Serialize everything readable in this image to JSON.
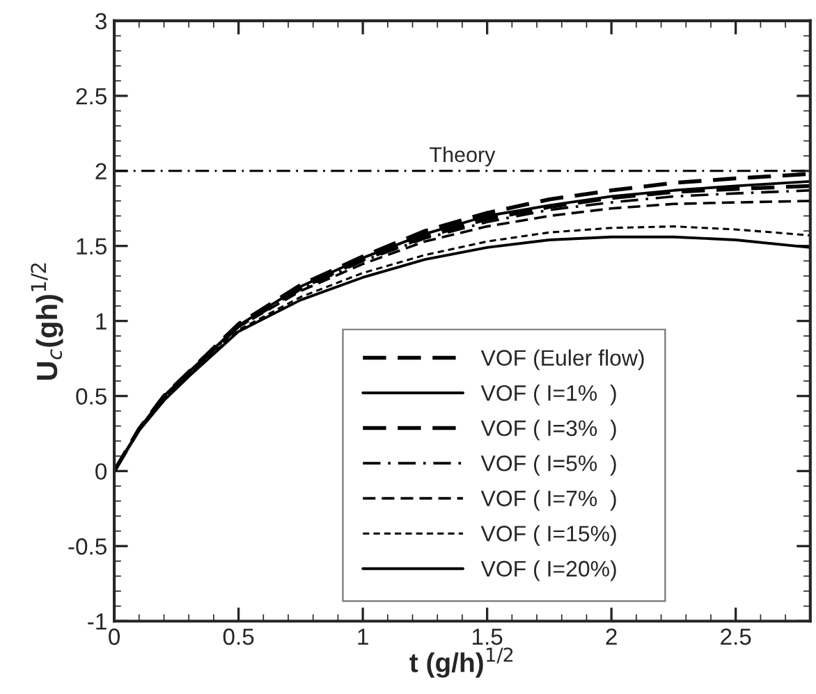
{
  "chart_data": {
    "type": "line",
    "xlabel": "t (g/h)$^{1/2}$",
    "ylabel": "U$_{c}$(gh)$^{1/2}$",
    "x": [
      0,
      0.1,
      0.2,
      0.3,
      0.5,
      0.75,
      1,
      1.25,
      1.5,
      1.75,
      2,
      2.25,
      2.5,
      2.8
    ],
    "series": [
      {
        "name": "VOF (Euler flow)",
        "color": "#000000",
        "line_style": "longdash",
        "values": [
          0,
          0.28,
          0.5,
          0.66,
          0.98,
          1.24,
          1.43,
          1.6,
          1.72,
          1.81,
          1.87,
          1.92,
          1.95,
          1.98
        ]
      },
      {
        "name": "VOF ( I=1%  )",
        "color": "#000000",
        "line_style": "solid",
        "values": [
          0,
          0.28,
          0.5,
          0.66,
          0.97,
          1.23,
          1.42,
          1.58,
          1.7,
          1.77,
          1.83,
          1.87,
          1.9,
          1.93
        ]
      },
      {
        "name": "VOF ( I=3%  )",
        "color": "#000000",
        "line_style": "longdash",
        "values": [
          0,
          0.28,
          0.5,
          0.66,
          0.97,
          1.22,
          1.41,
          1.56,
          1.68,
          1.76,
          1.82,
          1.86,
          1.88,
          1.9
        ]
      },
      {
        "name": "VOF ( I=5%  )",
        "color": "#000000",
        "line_style": "dashdot",
        "values": [
          0,
          0.28,
          0.49,
          0.65,
          0.96,
          1.21,
          1.4,
          1.55,
          1.66,
          1.74,
          1.79,
          1.83,
          1.85,
          1.87
        ]
      },
      {
        "name": "VOF ( I=7%  )",
        "color": "#000000",
        "line_style": "dashed",
        "values": [
          0,
          0.28,
          0.49,
          0.65,
          0.96,
          1.2,
          1.38,
          1.53,
          1.63,
          1.7,
          1.75,
          1.78,
          1.79,
          1.8
        ]
      },
      {
        "name": "VOF ( I=15%)",
        "color": "#000000",
        "line_style": "dotted",
        "values": [
          0,
          0.27,
          0.48,
          0.64,
          0.94,
          1.16,
          1.32,
          1.44,
          1.53,
          1.59,
          1.62,
          1.63,
          1.61,
          1.57
        ]
      },
      {
        "name": "VOF ( I=20%)",
        "color": "#000000",
        "line_style": "solid",
        "values": [
          0,
          0.27,
          0.47,
          0.63,
          0.93,
          1.14,
          1.29,
          1.41,
          1.49,
          1.54,
          1.56,
          1.56,
          1.54,
          1.49
        ]
      }
    ],
    "ref_lines": [
      {
        "axis": "y",
        "value": 2,
        "label": "Theory",
        "color": "#000000",
        "line_style": "dashdot"
      }
    ],
    "xlim": [
      0,
      2.8
    ],
    "xticks": [
      0,
      0.5,
      1,
      1.5,
      2,
      2.5
    ],
    "ylim": [
      -1,
      3
    ],
    "yticks": [
      -1,
      -0.5,
      0,
      0.5,
      1,
      1.5,
      2,
      2.5,
      3
    ],
    "grid": false,
    "legend": "bottom",
    "marker": "none"
  }
}
